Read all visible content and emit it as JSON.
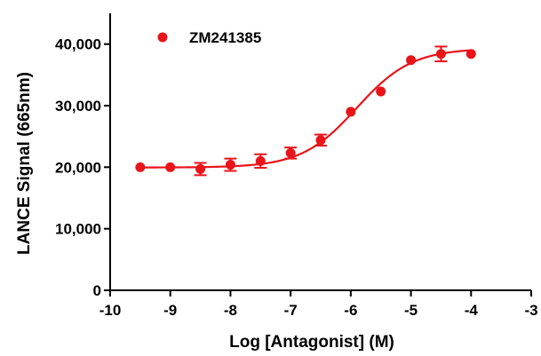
{
  "chart_data": {
    "type": "scatter",
    "xlabel": "Log [Antagonist] (M)",
    "ylabel": "LANCE Signal (665nm)",
    "xlim": [
      -10,
      -3
    ],
    "ylim": [
      0,
      45000
    ],
    "x_ticks": [
      -10,
      -9,
      -8,
      -7,
      -6,
      -5,
      -4,
      -3
    ],
    "x_tick_labels": [
      "-10",
      "-9",
      "-8",
      "-7",
      "-6",
      "-5",
      "-4",
      "-3"
    ],
    "y_ticks": [
      0,
      10000,
      20000,
      30000,
      40000
    ],
    "y_tick_labels": [
      "0",
      "10,000",
      "20,000",
      "30,000",
      "40,000"
    ],
    "legend_position": "top-left",
    "grid": false,
    "colors": {
      "series": "#e8141a",
      "axis": "#000000"
    },
    "series": [
      {
        "name": "ZM241385",
        "points": [
          {
            "x": -9.5,
            "y": 20000,
            "err": 0
          },
          {
            "x": -9.0,
            "y": 20000,
            "err": 0
          },
          {
            "x": -8.5,
            "y": 19700,
            "err": 1000
          },
          {
            "x": -8.0,
            "y": 20400,
            "err": 1000
          },
          {
            "x": -7.5,
            "y": 21000,
            "err": 1100
          },
          {
            "x": -7.0,
            "y": 22300,
            "err": 900
          },
          {
            "x": -6.5,
            "y": 24400,
            "err": 900
          },
          {
            "x": -6.0,
            "y": 29000,
            "err": 0
          },
          {
            "x": -5.5,
            "y": 32300,
            "err": 0
          },
          {
            "x": -5.0,
            "y": 37400,
            "err": 0
          },
          {
            "x": -4.5,
            "y": 38400,
            "err": 1200
          },
          {
            "x": -4.0,
            "y": 38400,
            "err": 0
          }
        ],
        "fit": {
          "model": "four-parameter logistic",
          "bottom": 19950,
          "top": 39300,
          "logIC50": -5.9,
          "hill": 0.95
        }
      }
    ]
  }
}
